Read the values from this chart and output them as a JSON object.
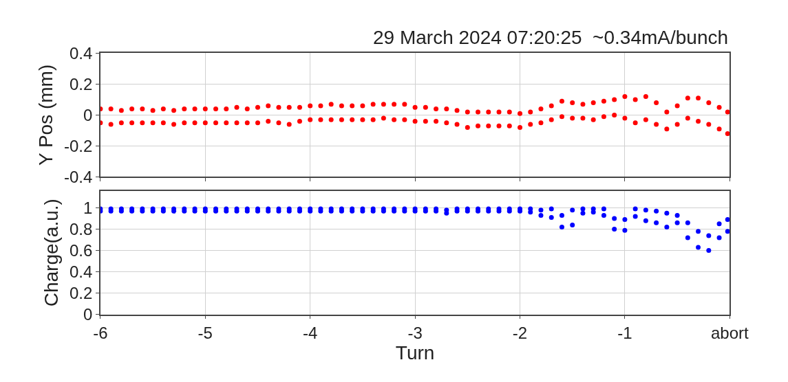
{
  "chart_data": [
    {
      "type": "scatter",
      "title": "29 March 2024 07:20:25  ~0.34mA/bunch",
      "ylabel": "Y Pos (mm)",
      "x": [
        -6.0,
        -6.0,
        -5.9,
        -5.9,
        -5.8,
        -5.8,
        -5.7,
        -5.7,
        -5.6,
        -5.6,
        -5.5,
        -5.5,
        -5.4,
        -5.4,
        -5.3,
        -5.3,
        -5.2,
        -5.2,
        -5.1,
        -5.1,
        -5.0,
        -5.0,
        -4.9,
        -4.9,
        -4.8,
        -4.8,
        -4.7,
        -4.7,
        -4.6,
        -4.6,
        -4.5,
        -4.5,
        -4.4,
        -4.4,
        -4.3,
        -4.3,
        -4.2,
        -4.2,
        -4.1,
        -4.1,
        -4.0,
        -4.0,
        -3.9,
        -3.9,
        -3.8,
        -3.8,
        -3.7,
        -3.7,
        -3.6,
        -3.6,
        -3.5,
        -3.5,
        -3.4,
        -3.4,
        -3.3,
        -3.3,
        -3.2,
        -3.2,
        -3.1,
        -3.1,
        -3.0,
        -3.0,
        -2.9,
        -2.9,
        -2.8,
        -2.8,
        -2.7,
        -2.7,
        -2.6,
        -2.6,
        -2.5,
        -2.5,
        -2.4,
        -2.4,
        -2.3,
        -2.3,
        -2.2,
        -2.2,
        -2.1,
        -2.1,
        -2.0,
        -2.0,
        -1.9,
        -1.9,
        -1.8,
        -1.8,
        -1.7,
        -1.7,
        -1.6,
        -1.6,
        -1.5,
        -1.5,
        -1.4,
        -1.4,
        -1.3,
        -1.3,
        -1.2,
        -1.2,
        -1.1,
        -1.1,
        -1.0,
        -1.0,
        -0.9,
        -0.9,
        -0.8,
        -0.8,
        -0.7,
        -0.7,
        -0.6,
        -0.6,
        -0.5,
        -0.5,
        -0.4,
        -0.4,
        -0.3,
        -0.3,
        -0.2,
        -0.2,
        -0.1,
        -0.1,
        -0.02,
        -0.02
      ],
      "series": [
        {
          "color": "#ff0000",
          "values": [
            0.04,
            -0.05,
            0.04,
            -0.06,
            0.03,
            -0.05,
            0.04,
            -0.05,
            0.04,
            -0.05,
            0.03,
            -0.05,
            0.04,
            -0.05,
            0.03,
            -0.06,
            0.04,
            -0.05,
            0.04,
            -0.05,
            0.04,
            -0.05,
            0.04,
            -0.05,
            0.04,
            -0.05,
            0.05,
            -0.05,
            0.04,
            -0.05,
            0.05,
            -0.05,
            0.06,
            -0.04,
            0.05,
            -0.05,
            0.05,
            -0.06,
            0.05,
            -0.04,
            0.06,
            -0.03,
            0.06,
            -0.03,
            0.07,
            -0.03,
            0.06,
            -0.03,
            0.06,
            -0.03,
            0.06,
            -0.03,
            0.07,
            -0.03,
            0.07,
            -0.02,
            0.07,
            -0.03,
            0.07,
            -0.03,
            0.05,
            -0.04,
            0.05,
            -0.04,
            0.04,
            -0.04,
            0.04,
            -0.05,
            0.03,
            -0.06,
            0.02,
            -0.08,
            0.02,
            -0.07,
            0.02,
            -0.07,
            0.02,
            -0.07,
            0.02,
            -0.07,
            0.01,
            -0.08,
            0.02,
            -0.06,
            0.04,
            -0.05,
            0.06,
            -0.03,
            0.09,
            -0.01,
            0.08,
            -0.02,
            0.07,
            -0.02,
            0.08,
            -0.03,
            0.09,
            -0.01,
            0.1,
            0.0,
            0.12,
            -0.02,
            0.1,
            -0.05,
            0.12,
            -0.03,
            0.08,
            -0.06,
            0.02,
            -0.09,
            0.06,
            -0.06,
            0.11,
            -0.02,
            0.11,
            -0.04,
            0.08,
            -0.06,
            0.05,
            -0.09,
            0.02,
            -0.12
          ]
        }
      ],
      "xlim": [
        -6,
        0
      ],
      "xticks": [
        -6,
        -5,
        -4,
        -3,
        -2,
        -1,
        0
      ],
      "ylim": [
        -0.4,
        0.4
      ],
      "yticks": [
        -0.4,
        -0.2,
        0,
        0.2,
        0.4
      ],
      "tick_labels": "y",
      "grid": true,
      "marker": "circle"
    },
    {
      "type": "scatter",
      "xlabel": "Turn",
      "ylabel": "Charge(a.u.)",
      "x": [
        -6.0,
        -6.0,
        -5.9,
        -5.9,
        -5.8,
        -5.8,
        -5.7,
        -5.7,
        -5.6,
        -5.6,
        -5.5,
        -5.5,
        -5.4,
        -5.4,
        -5.3,
        -5.3,
        -5.2,
        -5.2,
        -5.1,
        -5.1,
        -5.0,
        -5.0,
        -4.9,
        -4.9,
        -4.8,
        -4.8,
        -4.7,
        -4.7,
        -4.6,
        -4.6,
        -4.5,
        -4.5,
        -4.4,
        -4.4,
        -4.3,
        -4.3,
        -4.2,
        -4.2,
        -4.1,
        -4.1,
        -4.0,
        -4.0,
        -3.9,
        -3.9,
        -3.8,
        -3.8,
        -3.7,
        -3.7,
        -3.6,
        -3.6,
        -3.5,
        -3.5,
        -3.4,
        -3.4,
        -3.3,
        -3.3,
        -3.2,
        -3.2,
        -3.1,
        -3.1,
        -3.0,
        -3.0,
        -2.9,
        -2.9,
        -2.8,
        -2.8,
        -2.7,
        -2.7,
        -2.6,
        -2.6,
        -2.5,
        -2.5,
        -2.4,
        -2.4,
        -2.3,
        -2.3,
        -2.2,
        -2.2,
        -2.1,
        -2.1,
        -2.0,
        -2.0,
        -1.9,
        -1.9,
        -1.8,
        -1.8,
        -1.7,
        -1.7,
        -1.6,
        -1.6,
        -1.5,
        -1.5,
        -1.4,
        -1.4,
        -1.3,
        -1.3,
        -1.2,
        -1.2,
        -1.1,
        -1.1,
        -1.0,
        -1.0,
        -0.9,
        -0.9,
        -0.8,
        -0.8,
        -0.7,
        -0.7,
        -0.6,
        -0.6,
        -0.5,
        -0.5,
        -0.4,
        -0.4,
        -0.3,
        -0.3,
        -0.2,
        -0.2,
        -0.1,
        -0.1,
        -0.02,
        -0.02
      ],
      "series": [
        {
          "color": "#0000ff",
          "values": [
            0.99,
            0.97,
            0.99,
            0.97,
            0.99,
            0.97,
            0.99,
            0.97,
            0.99,
            0.97,
            0.99,
            0.97,
            0.99,
            0.97,
            0.99,
            0.97,
            0.99,
            0.97,
            0.99,
            0.97,
            0.99,
            0.97,
            0.99,
            0.97,
            0.99,
            0.97,
            0.99,
            0.97,
            0.99,
            0.97,
            0.99,
            0.97,
            0.99,
            0.97,
            0.99,
            0.97,
            0.99,
            0.97,
            0.99,
            0.97,
            0.99,
            0.97,
            0.99,
            0.97,
            0.99,
            0.97,
            0.99,
            0.97,
            0.99,
            0.97,
            0.99,
            0.97,
            0.99,
            0.97,
            0.99,
            0.97,
            0.99,
            0.97,
            0.99,
            0.97,
            0.99,
            0.97,
            0.99,
            0.97,
            0.99,
            0.97,
            0.98,
            0.95,
            0.99,
            0.97,
            0.99,
            0.97,
            0.99,
            0.97,
            0.99,
            0.97,
            0.99,
            0.97,
            0.99,
            0.97,
            0.99,
            0.97,
            0.99,
            0.96,
            0.98,
            0.93,
            0.99,
            0.91,
            0.93,
            0.82,
            0.98,
            0.84,
            0.99,
            0.95,
            0.99,
            0.96,
            0.99,
            0.93,
            0.9,
            0.8,
            0.89,
            0.79,
            0.99,
            0.92,
            0.98,
            0.88,
            0.97,
            0.86,
            0.95,
            0.82,
            0.93,
            0.86,
            0.86,
            0.72,
            0.78,
            0.63,
            0.74,
            0.6,
            0.85,
            0.72,
            0.89,
            0.78
          ]
        }
      ],
      "xlim": [
        -6,
        0
      ],
      "xticks": [
        -6,
        -5,
        -4,
        -3,
        -2,
        -1,
        {
          "value": 0,
          "label": "abort"
        }
      ],
      "ylim": [
        0,
        1.16
      ],
      "yticks": [
        0,
        0.2,
        0.4,
        0.6,
        0.8,
        1
      ],
      "grid": true,
      "marker": "circle"
    }
  ]
}
